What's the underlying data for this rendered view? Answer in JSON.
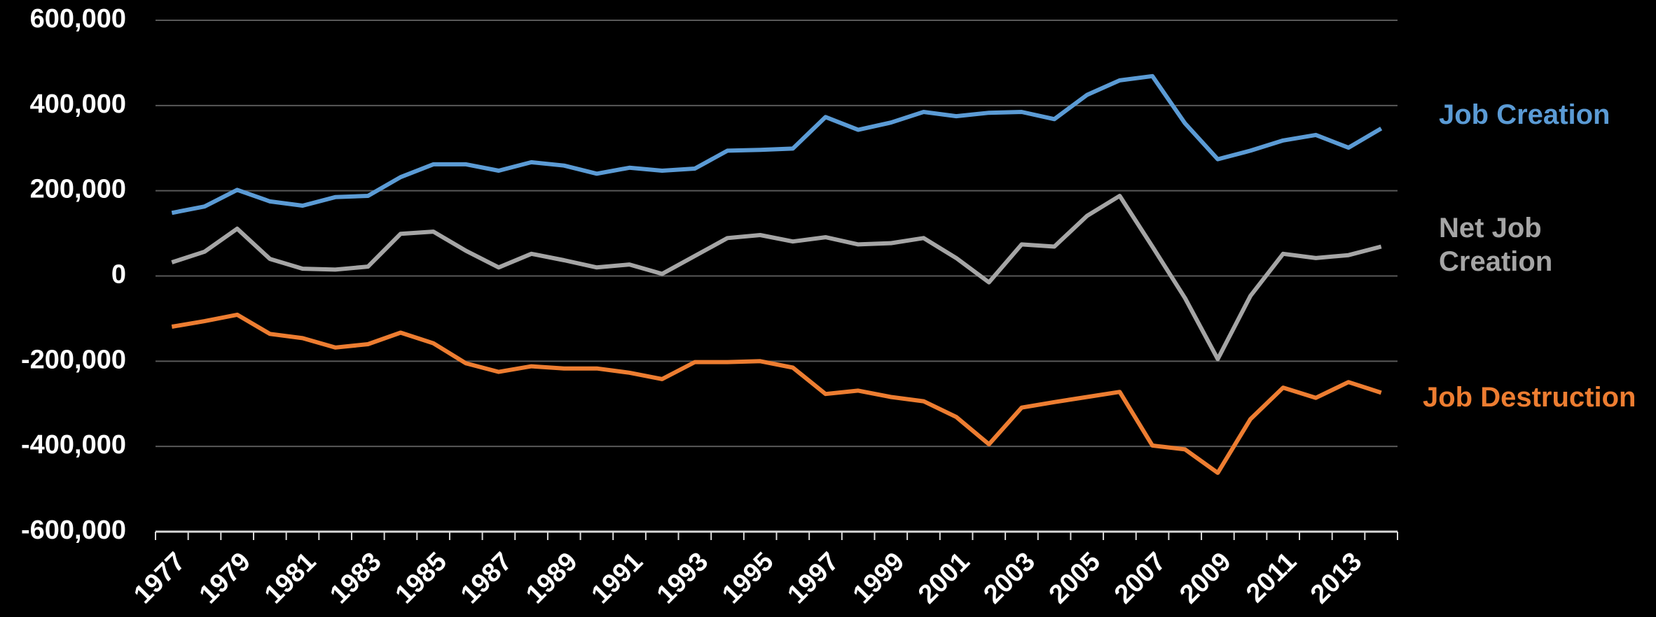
{
  "chart_data": {
    "type": "line",
    "categories": [
      "1977",
      null,
      "1979",
      null,
      "1981",
      null,
      "1983",
      null,
      "1985",
      null,
      "1987",
      null,
      "1989",
      null,
      "1991",
      null,
      "1993",
      null,
      "1995",
      null,
      "1997",
      null,
      "1999",
      null,
      "2001",
      null,
      "2003",
      null,
      "2005",
      null,
      "2007",
      null,
      "2009",
      null,
      "2011",
      null,
      "2013",
      null
    ],
    "series": [
      {
        "name": "Job Creation",
        "color": "#5b9bd5",
        "values": [
          148000,
          163000,
          202000,
          175000,
          165000,
          185000,
          188000,
          232000,
          262000,
          262000,
          247000,
          267000,
          259000,
          240000,
          254000,
          247000,
          252000,
          294000,
          296000,
          299000,
          373000,
          343000,
          360000,
          385000,
          375000,
          383000,
          385000,
          368000,
          425000,
          459000,
          469000,
          358000,
          274000,
          294000,
          318000,
          331000,
          301000,
          346000
        ]
      },
      {
        "name": "Net Job Creation",
        "color": "#a5a5a5",
        "values": [
          32000,
          57000,
          111000,
          40000,
          17000,
          15000,
          22000,
          99000,
          104000,
          59000,
          20000,
          52000,
          37000,
          20000,
          27000,
          5000,
          47000,
          89000,
          96000,
          81000,
          91000,
          74000,
          77000,
          89000,
          42000,
          -15000,
          74000,
          69000,
          141000,
          188000,
          69000,
          -52000,
          -195000,
          -47000,
          52000,
          42000,
          49000,
          69000
        ]
      },
      {
        "name": "Job Destruction",
        "color": "#ed7d31",
        "values": [
          -119000,
          -106000,
          -91000,
          -136000,
          -146000,
          -168000,
          -160000,
          -133000,
          -158000,
          -205000,
          -225000,
          -212000,
          -217000,
          -217000,
          -227000,
          -242000,
          -202000,
          -202000,
          -200000,
          -215000,
          -277000,
          -269000,
          -284000,
          -294000,
          -331000,
          -395000,
          -309000,
          -296000,
          -284000,
          -272000,
          -398000,
          -407000,
          -462000,
          -336000,
          -262000,
          -286000,
          -249000,
          -274000
        ]
      }
    ],
    "ylim": [
      -600000,
      600000
    ],
    "yticks": [
      {
        "value": -600000,
        "label": "-600,000"
      },
      {
        "value": -400000,
        "label": "-400,000"
      },
      {
        "value": -200000,
        "label": "-200,000"
      },
      0,
      {
        "value": 200000,
        "label": "200,000"
      },
      {
        "value": 400000,
        "label": "400,000"
      },
      {
        "value": 600000,
        "label": "600,000"
      }
    ],
    "grid": true
  }
}
